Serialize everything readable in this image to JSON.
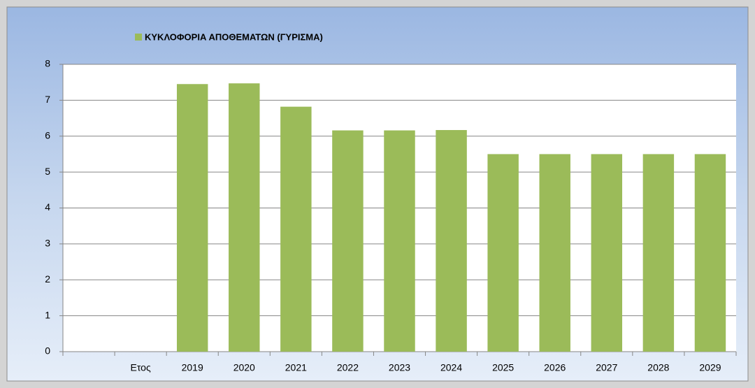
{
  "chart_data": {
    "type": "bar",
    "categories": [
      null,
      "Ετος",
      "2019",
      "2020",
      "2021",
      "2022",
      "2023",
      "2024",
      "2025",
      "2026",
      "2027",
      "2028",
      "2029"
    ],
    "series": [
      {
        "name": "ΚΥΚΛΟΦΟΡΙΑ ΑΠΟΘΕΜΑΤΩΝ (ΓΥΡΙΣΜΑ)",
        "color": "#9bbb59",
        "values": [
          null,
          null,
          7.45,
          7.47,
          6.82,
          6.16,
          6.16,
          6.17,
          5.5,
          5.5,
          5.5,
          5.5,
          5.5
        ]
      }
    ],
    "ylim": [
      0,
      8
    ],
    "yticks": [
      0,
      1,
      2,
      3,
      4,
      5,
      6,
      7,
      8
    ],
    "grid": true,
    "legend": "top"
  }
}
